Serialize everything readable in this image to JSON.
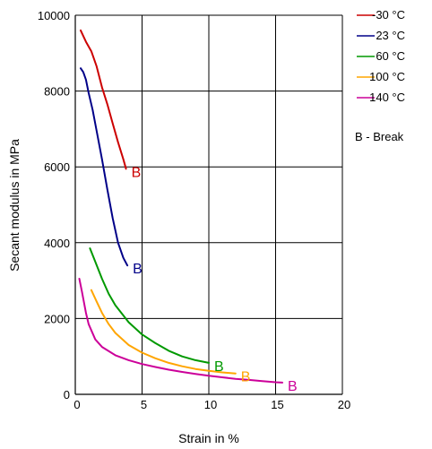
{
  "chart_data": {
    "type": "line",
    "xlabel": "Strain in %",
    "ylabel": "Secant modulus in MPa",
    "xlim": [
      0,
      20
    ],
    "ylim": [
      0,
      10000
    ],
    "x_ticks": [
      "0",
      "5",
      "10",
      "15",
      "20"
    ],
    "y_ticks": [
      "0",
      "2000",
      "4000",
      "6000",
      "8000",
      "10000"
    ],
    "grid": true,
    "legend_position": "right",
    "note": "B - Break",
    "break_label": "B",
    "series": [
      {
        "name": "-30 °C",
        "color": "#cc0000",
        "points": [
          [
            0.4,
            9600
          ],
          [
            0.8,
            9300
          ],
          [
            1.2,
            9050
          ],
          [
            1.6,
            8650
          ],
          [
            2.0,
            8100
          ],
          [
            2.4,
            7650
          ],
          [
            2.8,
            7150
          ],
          [
            3.2,
            6650
          ],
          [
            3.6,
            6200
          ],
          [
            3.8,
            5950
          ]
        ]
      },
      {
        "name": "23 °C",
        "color": "#000088",
        "points": [
          [
            0.4,
            8600
          ],
          [
            0.6,
            8500
          ],
          [
            0.8,
            8300
          ],
          [
            1.0,
            7950
          ],
          [
            1.3,
            7500
          ],
          [
            1.6,
            6950
          ],
          [
            2.0,
            6200
          ],
          [
            2.4,
            5400
          ],
          [
            2.8,
            4650
          ],
          [
            3.2,
            4000
          ],
          [
            3.6,
            3600
          ],
          [
            3.9,
            3400
          ]
        ]
      },
      {
        "name": "60 °C",
        "color": "#009900",
        "points": [
          [
            1.1,
            3850
          ],
          [
            1.5,
            3500
          ],
          [
            2.0,
            3050
          ],
          [
            2.5,
            2650
          ],
          [
            3.0,
            2350
          ],
          [
            4.0,
            1900
          ],
          [
            5.0,
            1580
          ],
          [
            6.0,
            1350
          ],
          [
            7.0,
            1150
          ],
          [
            8.0,
            1000
          ],
          [
            9.0,
            900
          ],
          [
            10.0,
            830
          ]
        ]
      },
      {
        "name": "100 °C",
        "color": "#ffa500",
        "points": [
          [
            1.2,
            2750
          ],
          [
            1.6,
            2450
          ],
          [
            2.0,
            2150
          ],
          [
            2.5,
            1850
          ],
          [
            3.0,
            1620
          ],
          [
            4.0,
            1300
          ],
          [
            5.0,
            1100
          ],
          [
            6.0,
            950
          ],
          [
            7.0,
            830
          ],
          [
            8.0,
            740
          ],
          [
            9.0,
            670
          ],
          [
            10.0,
            620
          ],
          [
            11.0,
            580
          ],
          [
            12.0,
            550
          ]
        ]
      },
      {
        "name": "140 °C",
        "color": "#cc0099",
        "points": [
          [
            0.3,
            3050
          ],
          [
            0.5,
            2700
          ],
          [
            0.8,
            2150
          ],
          [
            1.0,
            1850
          ],
          [
            1.5,
            1450
          ],
          [
            2.0,
            1250
          ],
          [
            3.0,
            1030
          ],
          [
            4.0,
            900
          ],
          [
            5.0,
            800
          ],
          [
            6.0,
            720
          ],
          [
            7.0,
            650
          ],
          [
            8.0,
            590
          ],
          [
            9.0,
            540
          ],
          [
            10.0,
            490
          ],
          [
            11.0,
            450
          ],
          [
            12.0,
            410
          ],
          [
            13.0,
            380
          ],
          [
            14.0,
            350
          ],
          [
            15.0,
            320
          ],
          [
            15.5,
            310
          ]
        ]
      }
    ]
  }
}
